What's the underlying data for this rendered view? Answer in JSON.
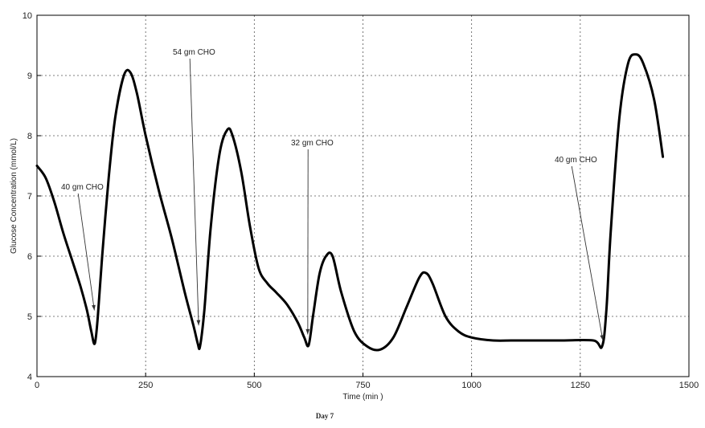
{
  "chart_data": {
    "type": "line",
    "xlabel": "Time (min )",
    "ylabel": "Glucose Concentration (mmol/L)",
    "caption": "Day 7",
    "xlim": [
      0,
      1500
    ],
    "ylim": [
      4,
      10
    ],
    "xticks": [
      0,
      250,
      500,
      750,
      1000,
      1250,
      1500
    ],
    "yticks": [
      4,
      5,
      6,
      7,
      8,
      9,
      10
    ],
    "grid": true,
    "line_color": "#000000",
    "series": [
      {
        "x": [
          0,
          20,
          40,
          60,
          80,
          100,
          115,
          125,
          133,
          140,
          150,
          165,
          180,
          200,
          215,
          230,
          250,
          280,
          310,
          340,
          360,
          370,
          375,
          385,
          400,
          420,
          438,
          450,
          470,
          490,
          510,
          530,
          550,
          575,
          600,
          615,
          625,
          635,
          650,
          665,
          680,
          700,
          730,
          760,
          790,
          820,
          850,
          880,
          895,
          910,
          940,
          970,
          1000,
          1050,
          1100,
          1200,
          1280,
          1300,
          1310,
          1320,
          1340,
          1360,
          1378,
          1395,
          1420,
          1440
        ],
        "y": [
          7.5,
          7.3,
          6.9,
          6.4,
          5.95,
          5.5,
          5.1,
          4.75,
          4.55,
          5.0,
          6.0,
          7.3,
          8.3,
          9.0,
          9.05,
          8.7,
          8.0,
          7.1,
          6.3,
          5.4,
          4.85,
          4.55,
          4.5,
          5.1,
          6.5,
          7.7,
          8.1,
          8.0,
          7.4,
          6.5,
          5.8,
          5.55,
          5.4,
          5.2,
          4.9,
          4.65,
          4.52,
          5.0,
          5.7,
          6.0,
          6.0,
          5.4,
          4.75,
          4.5,
          4.45,
          4.65,
          5.15,
          5.65,
          5.72,
          5.55,
          5.0,
          4.75,
          4.65,
          4.6,
          4.6,
          4.6,
          4.6,
          4.5,
          5.1,
          6.4,
          8.3,
          9.2,
          9.35,
          9.2,
          8.6,
          7.65
        ]
      }
    ],
    "annotations": [
      {
        "text": "40 gm CHO",
        "x": 132,
        "y": 5.1
      },
      {
        "text": "54 gm CHO",
        "x": 372,
        "y": 4.85
      },
      {
        "text": "32 gm CHO",
        "x": 623,
        "y": 4.7
      },
      {
        "text": "40 gm CHO",
        "x": 1302,
        "y": 4.6
      }
    ]
  }
}
